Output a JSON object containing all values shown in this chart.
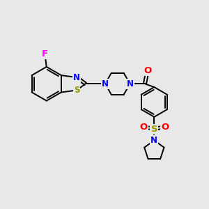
{
  "bg_color": "#e8e8e8",
  "bond_color": "#000000",
  "bond_lw": 1.4,
  "atom_colors": {
    "F": "#ff00ff",
    "N": "#0000ff",
    "O": "#ff0000",
    "S": "#999900",
    "C": "#000000"
  },
  "font_size": 8.5,
  "figsize": [
    3.0,
    3.0
  ],
  "dpi": 100
}
